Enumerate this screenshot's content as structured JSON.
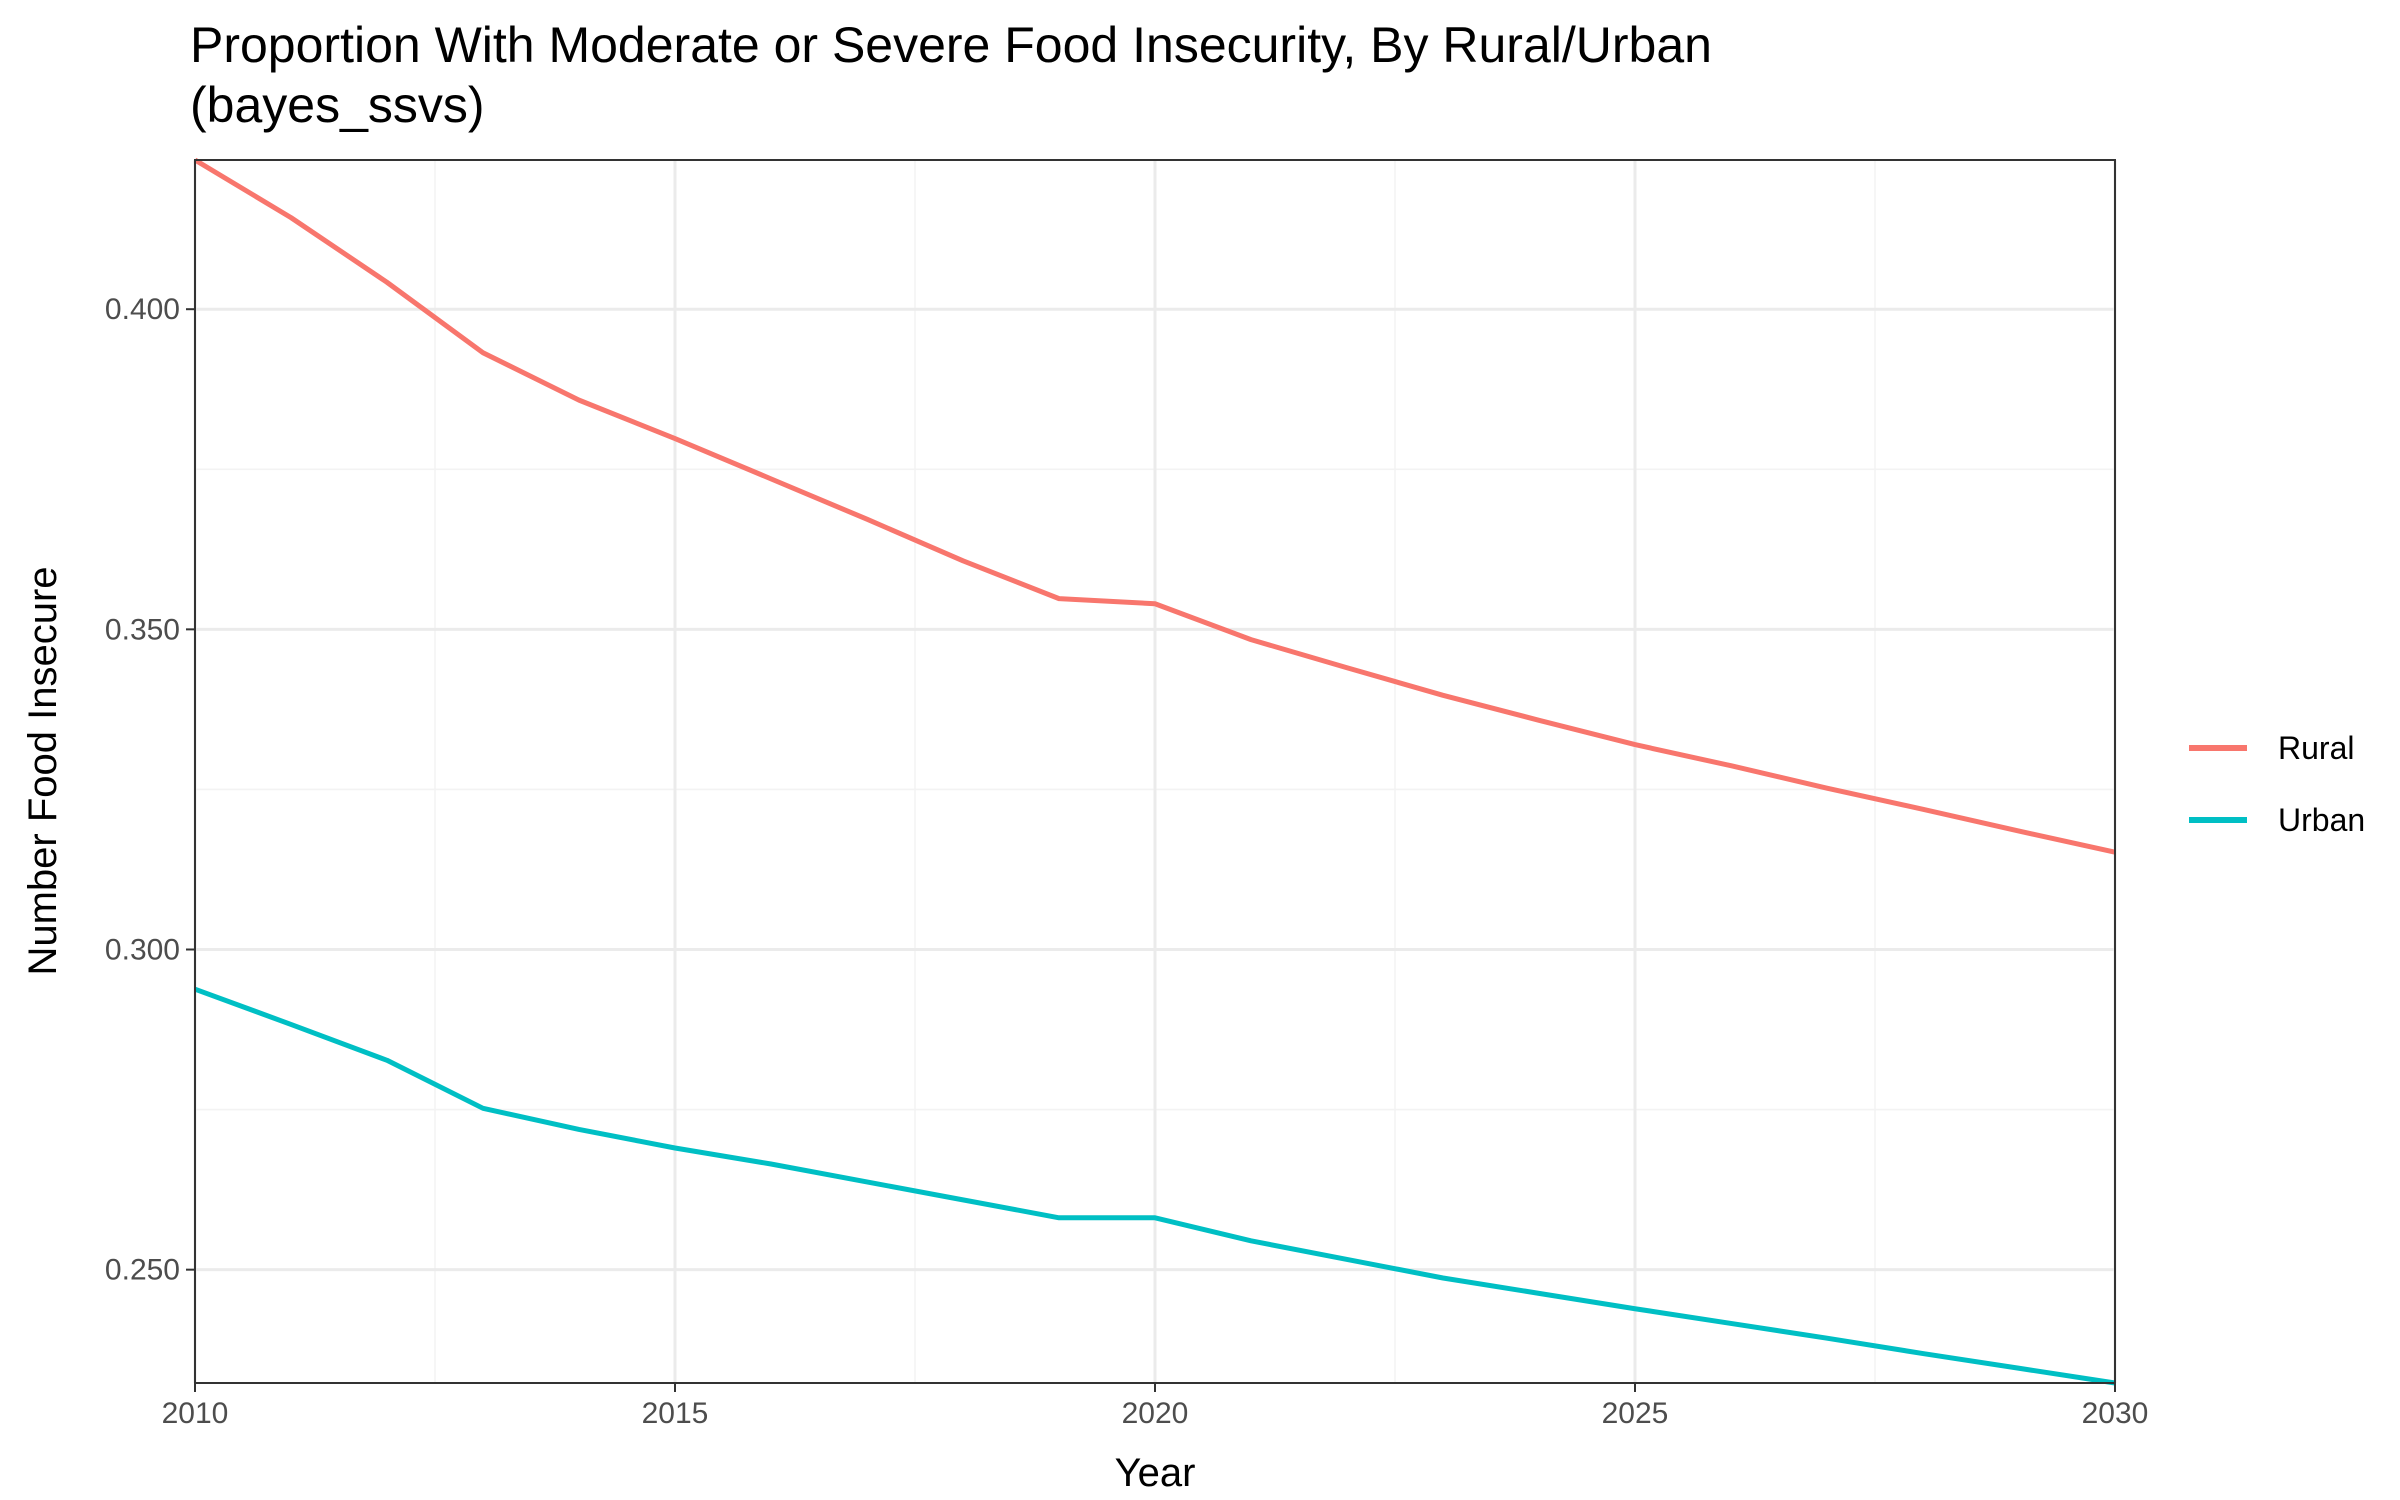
{
  "chart_data": {
    "type": "line",
    "title": "Proportion With Moderate or Severe Food Insecurity, By Rural/Urban",
    "subtitle": "(bayes_ssvs)",
    "xlabel": "Year",
    "ylabel": "Number Food Insecure",
    "xlim": [
      2010,
      2030
    ],
    "ylim": [
      0.2323,
      0.4233
    ],
    "x_ticks": [
      2010,
      2015,
      2020,
      2025,
      2030
    ],
    "x_tick_labels": [
      "2010",
      "2015",
      "2020",
      "2025",
      "2030"
    ],
    "y_ticks": [
      0.25,
      0.3,
      0.35,
      0.4
    ],
    "y_tick_labels": [
      "0.250",
      "0.300",
      "0.350",
      "0.400"
    ],
    "grid": true,
    "legend_position": "right",
    "x": [
      2010,
      2011,
      2012,
      2013,
      2014,
      2015,
      2016,
      2017,
      2018,
      2019,
      2020,
      2021,
      2022,
      2023,
      2024,
      2025,
      2026,
      2027,
      2028,
      2029,
      2030
    ],
    "series": [
      {
        "name": "Rural",
        "color": "#f8766d",
        "values": [
          0.4233,
          0.4143,
          0.4042,
          0.3932,
          0.3858,
          0.3798,
          0.3735,
          0.3672,
          0.3607,
          0.3548,
          0.354,
          0.3484,
          0.344,
          0.3397,
          0.3358,
          0.332,
          0.3287,
          0.3252,
          0.3219,
          0.3185,
          0.3152
        ]
      },
      {
        "name": "Urban",
        "color": "#00bfc4",
        "values": [
          0.2938,
          0.2883,
          0.2827,
          0.2752,
          0.2719,
          0.269,
          0.2665,
          0.2637,
          0.2609,
          0.2581,
          0.2581,
          0.2545,
          0.2516,
          0.2487,
          0.2463,
          0.2439,
          0.2416,
          0.2393,
          0.2369,
          0.2346,
          0.2323
        ]
      }
    ]
  }
}
